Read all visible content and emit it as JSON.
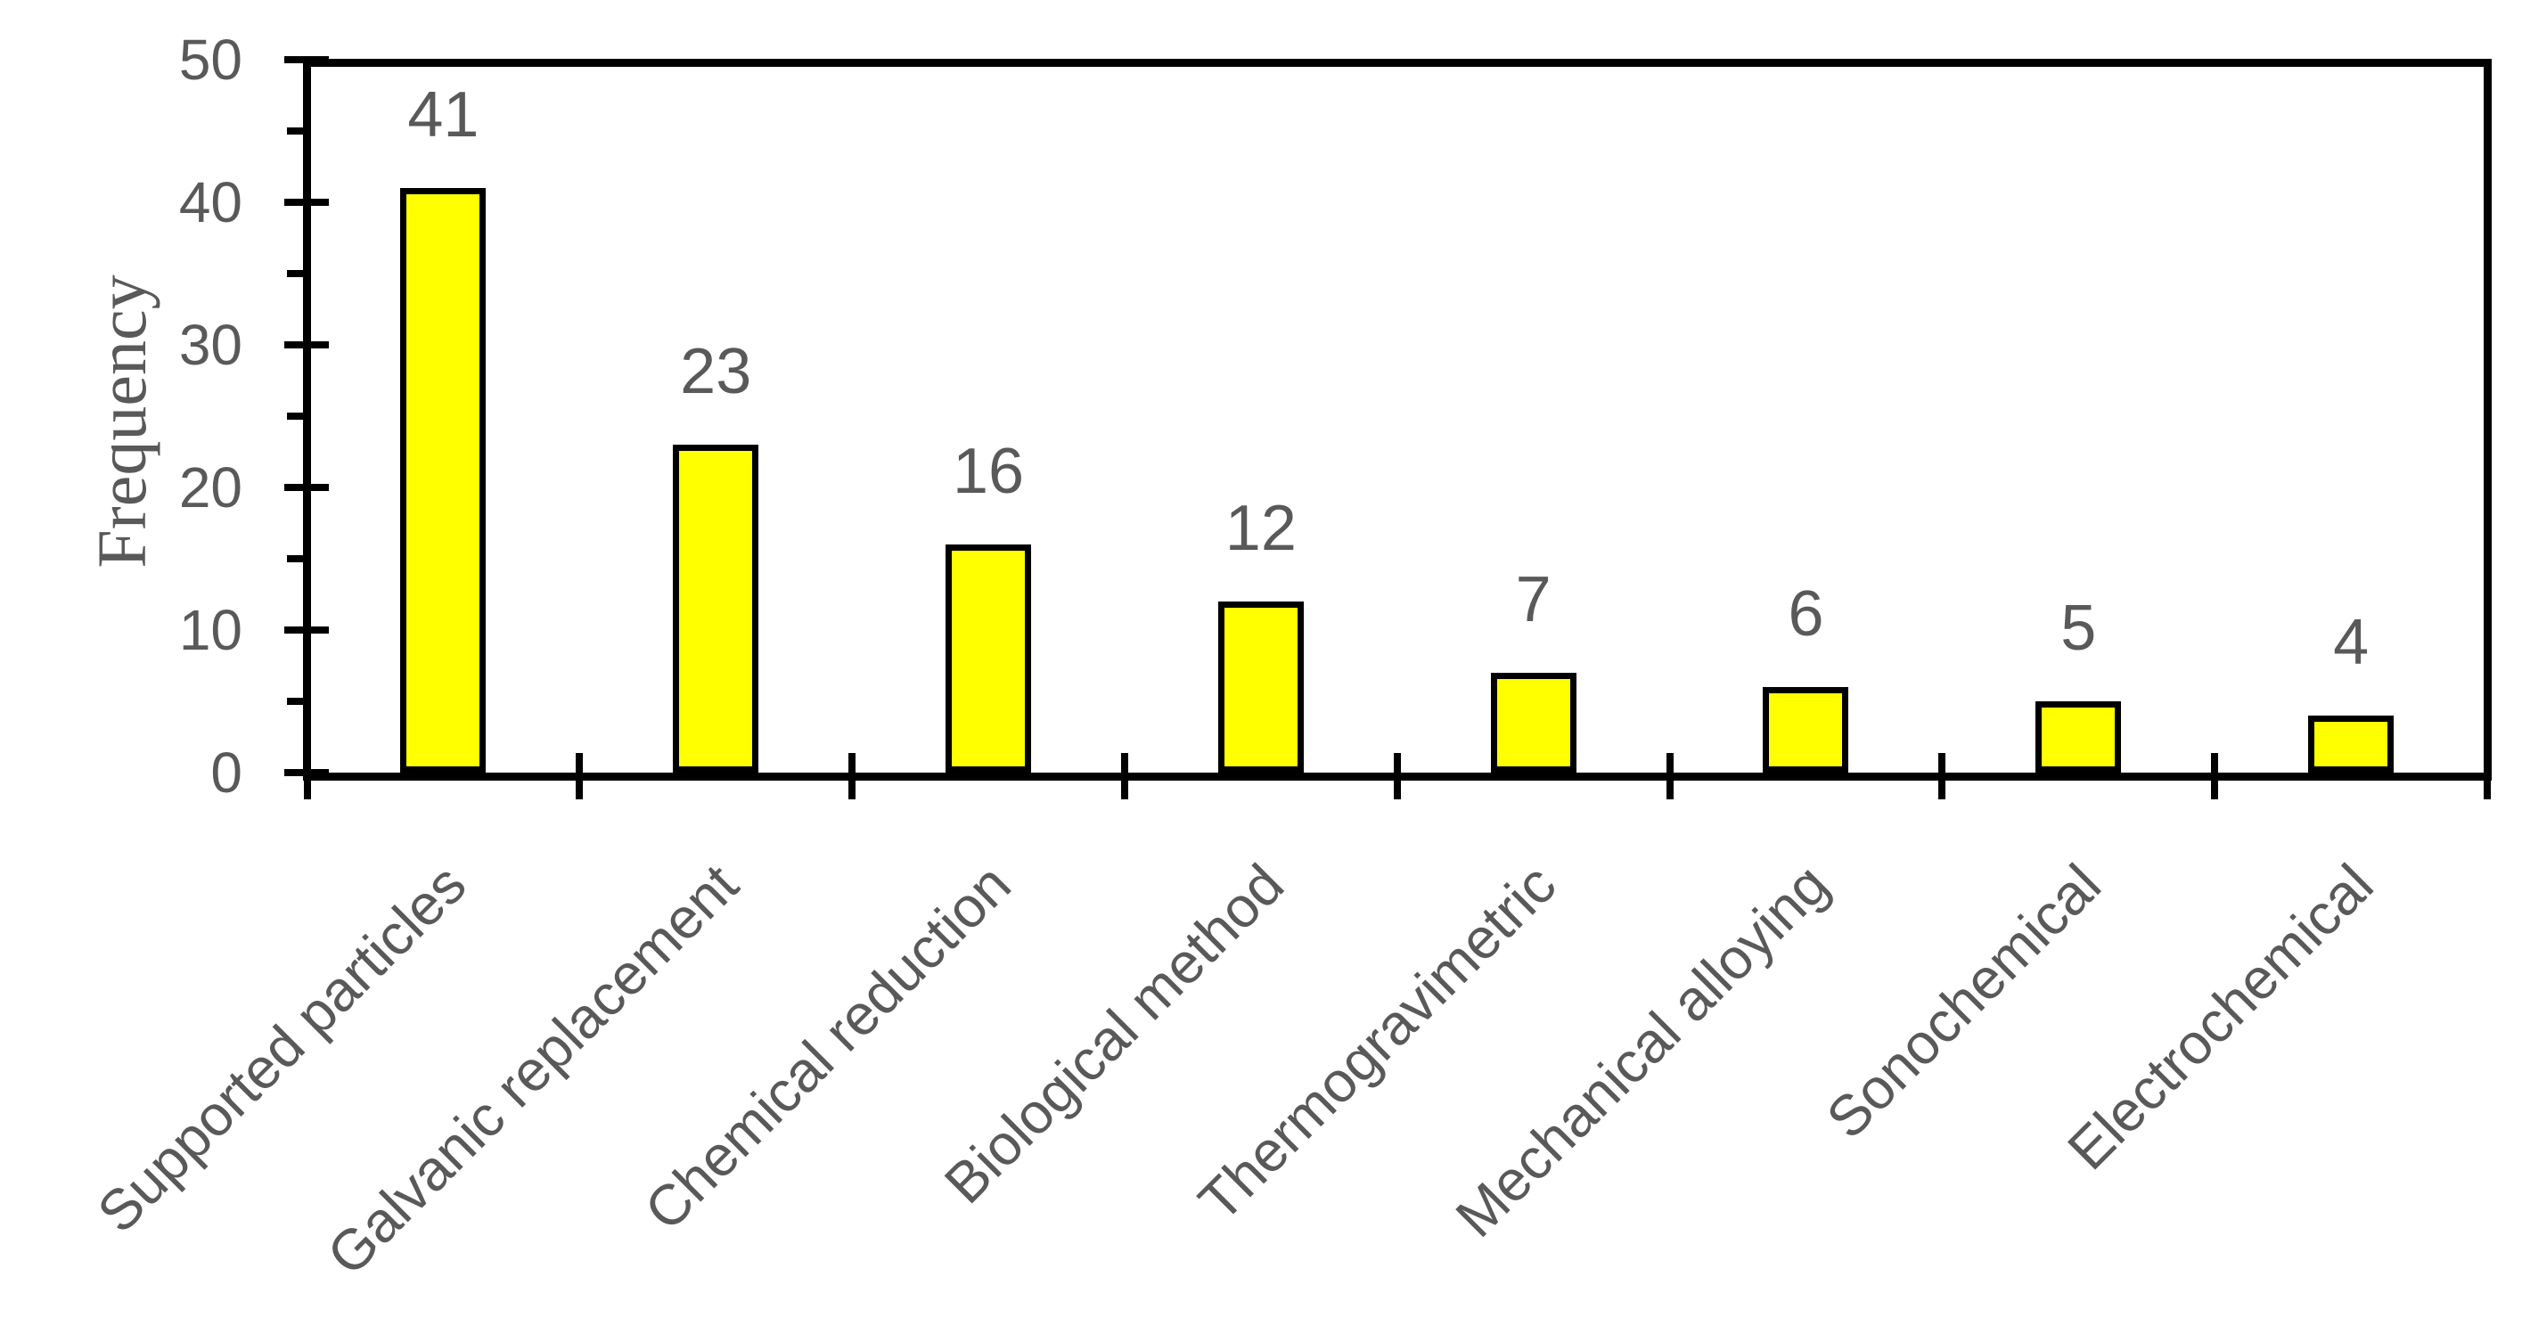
{
  "chart_data": {
    "type": "bar",
    "title": "",
    "categories": [
      "Supported particles",
      "Galvanic replacement",
      "Chemical reduction",
      "Biological method",
      "Thermogravimetric",
      "Mechanical alloying",
      "Sonochemical",
      "Electrochemical"
    ],
    "values": [
      41,
      23,
      16,
      12,
      7,
      6,
      5,
      4
    ],
    "xlabel": "",
    "ylabel": "Frequency",
    "ylim": [
      0,
      50
    ],
    "y_major_ticks": [
      0,
      10,
      20,
      30,
      40,
      50
    ],
    "y_minor_ticks": [
      5,
      15,
      25,
      35,
      45
    ],
    "grid": false,
    "legend": false,
    "data_labels_shown": true,
    "bar_fill_color": "#FFFF00",
    "bar_border_color": "#000000",
    "axis_color": "#000000",
    "text_color": "#595959"
  }
}
